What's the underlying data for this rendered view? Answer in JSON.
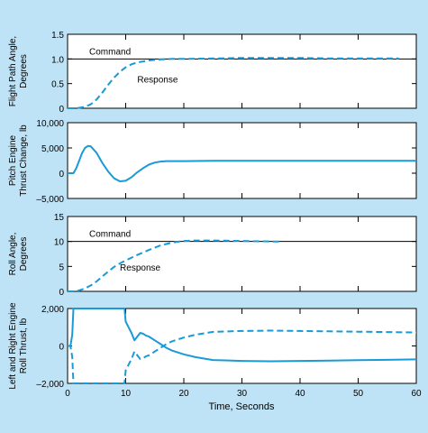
{
  "colors": {
    "background": "#bfe3f6",
    "plot_bg": "#ffffff",
    "series": "#1a9ad6",
    "axes": "#000000"
  },
  "chart_data": [
    {
      "type": "line",
      "ylabel": [
        "Flight Path Angle,",
        "Degrees"
      ],
      "xlim": [
        0,
        60
      ],
      "ylim": [
        0,
        1.5
      ],
      "yticks": [
        0,
        0.5,
        1.0,
        1.5
      ],
      "ytick_labels": [
        "0",
        "0.5",
        "1.0",
        "1.5"
      ],
      "grid": false,
      "reference_line": {
        "y": 1.0,
        "label": "Command"
      },
      "annotations": [
        {
          "text": "Response",
          "x": 12,
          "y": 0.52
        }
      ],
      "series": [
        {
          "name": "Response",
          "style": "dashed",
          "x": [
            0,
            1,
            2,
            3,
            4,
            5,
            6,
            7,
            8,
            9,
            10,
            11,
            12,
            14,
            16,
            18,
            20,
            25,
            30,
            35,
            40,
            45,
            50,
            55,
            57
          ],
          "y": [
            0,
            0,
            0.01,
            0.03,
            0.08,
            0.18,
            0.32,
            0.48,
            0.62,
            0.74,
            0.83,
            0.89,
            0.93,
            0.97,
            0.99,
            1.0,
            1.0,
            1.01,
            1.02,
            1.02,
            1.02,
            1.01,
            1.01,
            1.01,
            1.01
          ]
        }
      ]
    },
    {
      "type": "line",
      "ylabel": [
        "Pitch Engine",
        "Thrust Change, lb"
      ],
      "xlim": [
        0,
        60
      ],
      "ylim": [
        -5000,
        10000
      ],
      "yticks": [
        -5000,
        0,
        5000,
        10000
      ],
      "ytick_labels": [
        "–5,000",
        "0",
        "5,000",
        "10,000"
      ],
      "grid": false,
      "series": [
        {
          "style": "solid",
          "x": [
            0,
            1,
            1.5,
            2,
            2.5,
            3,
            3.5,
            4,
            5,
            6,
            7,
            8,
            9,
            10,
            11,
            12,
            13,
            14,
            15,
            16,
            17,
            18,
            20,
            25,
            30,
            40,
            50,
            60
          ],
          "y": [
            0,
            0,
            1000,
            2500,
            4000,
            5000,
            5400,
            5300,
            4000,
            2000,
            300,
            -1000,
            -1600,
            -1500,
            -800,
            200,
            1000,
            1700,
            2100,
            2300,
            2400,
            2400,
            2400,
            2450,
            2450,
            2450,
            2450,
            2450
          ]
        }
      ]
    },
    {
      "type": "line",
      "ylabel": [
        "Roll Angle,",
        "Degrees"
      ],
      "xlim": [
        0,
        60
      ],
      "ylim": [
        0,
        15
      ],
      "yticks": [
        0,
        5,
        10,
        15
      ],
      "ytick_labels": [
        "0",
        "5",
        "10",
        "15"
      ],
      "grid": false,
      "reference_line": {
        "y": 10,
        "label": "Command"
      },
      "annotations": [
        {
          "text": "Response",
          "x": 9,
          "y": 4.2
        }
      ],
      "series": [
        {
          "name": "Response",
          "style": "dashed",
          "x": [
            0,
            1,
            2,
            3,
            4,
            5,
            6,
            7,
            8,
            9,
            10,
            12,
            14,
            16,
            18,
            20,
            22,
            25,
            30,
            35,
            37
          ],
          "y": [
            0,
            0,
            0.2,
            0.6,
            1.2,
            2.0,
            3.0,
            4.0,
            4.9,
            5.6,
            6.2,
            7.3,
            8.3,
            9.2,
            9.8,
            10.1,
            10.2,
            10.2,
            10.1,
            10.0,
            10.0
          ]
        }
      ]
    },
    {
      "type": "line",
      "xlabel": "Time, Seconds",
      "ylabel": [
        "Left and Right Engine",
        "Roll Thrust, lb"
      ],
      "xlim": [
        0,
        60
      ],
      "ylim": [
        -2000,
        2000
      ],
      "xticks": [
        0,
        10,
        20,
        30,
        40,
        50,
        60
      ],
      "xtick_labels": [
        "0",
        "10",
        "20",
        "30",
        "40",
        "50",
        "60"
      ],
      "yticks": [
        -2000,
        0,
        2000
      ],
      "ytick_labels": [
        "–2,000",
        "0",
        "2,000"
      ],
      "grid": false,
      "series": [
        {
          "style": "solid",
          "x": [
            0,
            0.5,
            0.8,
            1,
            2,
            5,
            8,
            9.8,
            10,
            10.5,
            11,
            11.5,
            12,
            12.5,
            13,
            13.5,
            14,
            15,
            16,
            17,
            18,
            20,
            22,
            25,
            30,
            35,
            40,
            45,
            50,
            55,
            60
          ],
          "y": [
            0,
            0,
            600,
            2000,
            2000,
            2000,
            2000,
            2000,
            1300,
            1000,
            700,
            300,
            500,
            700,
            650,
            550,
            500,
            300,
            100,
            -100,
            -250,
            -450,
            -600,
            -750,
            -800,
            -820,
            -800,
            -780,
            -760,
            -740,
            -720
          ]
        },
        {
          "style": "dashed",
          "x": [
            0,
            0.5,
            0.8,
            1,
            2,
            5,
            8,
            9.8,
            10,
            10.5,
            11,
            11.5,
            12,
            12.5,
            13,
            13.5,
            14,
            15,
            16,
            17,
            18,
            20,
            22,
            25,
            30,
            35,
            40,
            45,
            50,
            55,
            60
          ],
          "y": [
            0,
            0,
            -600,
            -2000,
            -2000,
            -2000,
            -2000,
            -2000,
            -1300,
            -1000,
            -700,
            -300,
            -500,
            -700,
            -650,
            -550,
            -500,
            -300,
            -100,
            100,
            250,
            450,
            600,
            750,
            800,
            820,
            800,
            780,
            760,
            740,
            720
          ]
        }
      ]
    }
  ]
}
